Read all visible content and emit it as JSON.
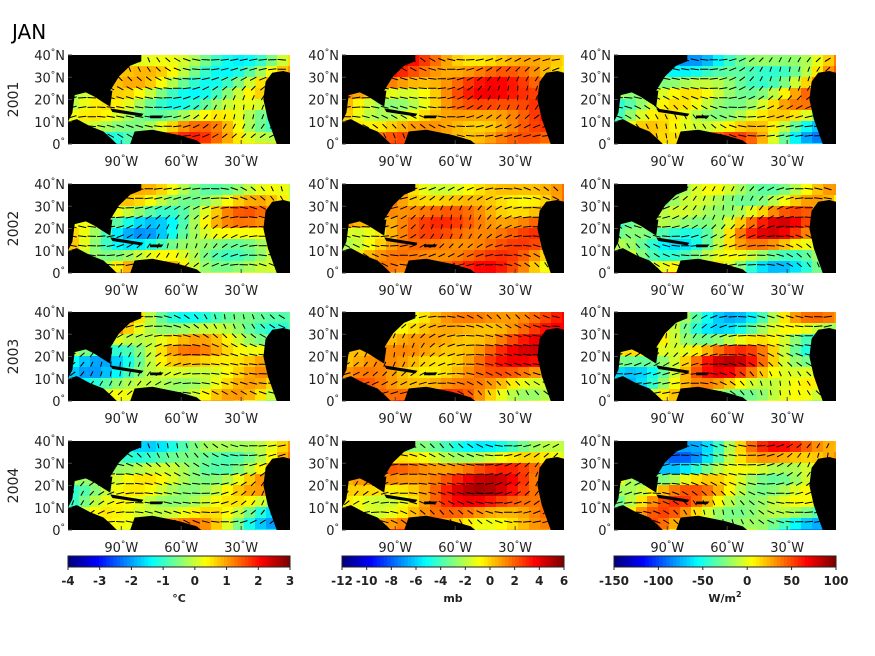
{
  "figure": {
    "month_label": "JAN",
    "years": [
      "2001",
      "2002",
      "2003",
      "2004"
    ],
    "lat_ticks": [
      "40",
      "30",
      "20",
      "10",
      "0"
    ],
    "lat_suffix": "N",
    "lon_ticks": [
      "90",
      "60",
      "30"
    ],
    "lon_suffix": "W",
    "deg": "°"
  },
  "colorbars": [
    {
      "ticks": [
        "-4",
        "-3",
        "-2",
        "-1",
        "0",
        "1",
        "2",
        "3"
      ],
      "unit": "°C"
    },
    {
      "ticks": [
        "-12",
        "-10",
        "-8",
        "-6",
        "-4",
        "-2",
        "0",
        "2",
        "4",
        "6"
      ],
      "unit": "mb"
    },
    {
      "ticks": [
        "-150",
        "-100",
        "-50",
        "0",
        "50",
        "100"
      ],
      "unit": "W/m",
      "unit_sup": "2"
    }
  ]
}
